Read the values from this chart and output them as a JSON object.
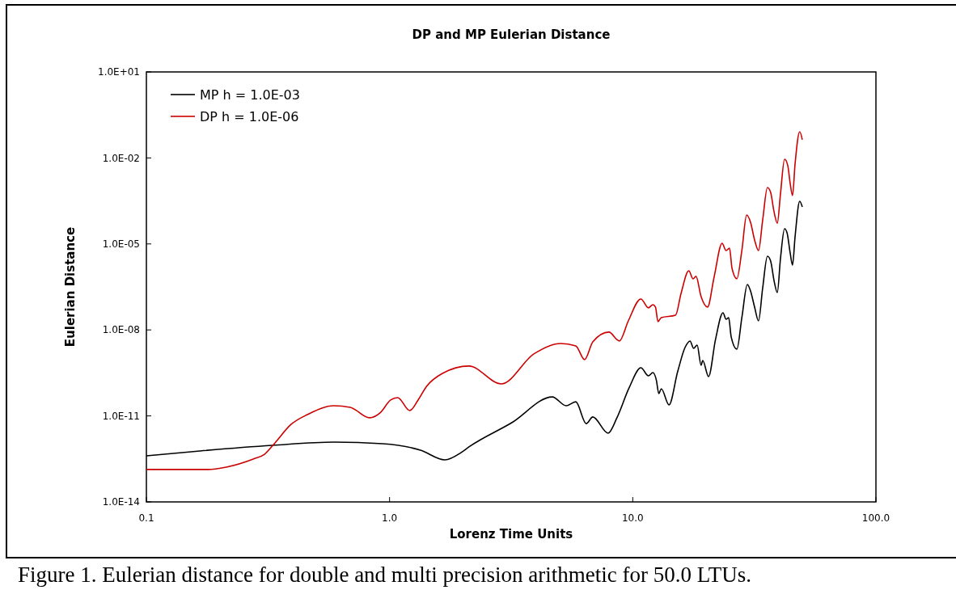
{
  "chart_data": {
    "type": "line",
    "title": "DP and MP Eulerian Distance",
    "xlabel": "Lorenz Time Units",
    "ylabel": "Eulerian Distance",
    "annotations": [
      "Figure 1. Eulerian distance for double and multi precision arithmetic for 50.0 LTUs."
    ],
    "log": "xy",
    "legend": "top left",
    "grid": false,
    "marker": "none",
    "line_style": "solid",
    "xlim": [
      0.1,
      100
    ],
    "ylim": [
      1e-14,
      10
    ],
    "xticks": [
      0.1,
      {
        "value": 1,
        "label": "1.0"
      },
      {
        "value": 10,
        "label": "10.0"
      },
      {
        "value": 100,
        "label": "100.0"
      }
    ],
    "yticks": [
      {
        "value": 1e-14,
        "label": "1.0E-14"
      },
      {
        "value": 1e-11,
        "label": "1.0E-11"
      },
      {
        "value": 1e-08,
        "label": "1.0E-08"
      },
      {
        "value": 1e-05,
        "label": "1.0E-05"
      },
      {
        "value": 0.01,
        "label": "1.0E-02"
      },
      {
        "value": 10,
        "label": "1.0E+01"
      }
    ],
    "series": [
      {
        "name": "MP h = 1.0E-03",
        "color": "#000000",
        "x": [
          0.1,
          0.166,
          0.33,
          0.591,
          0.936,
          1.34,
          1.69,
          1.97,
          2.12,
          3.18,
          4.67,
          5.32,
          5.83,
          6.44,
          6.85,
          7.92,
          8.61,
          9.66,
          10.8,
          11.6,
          12.1,
          12.5,
          12.8,
          13.1,
          14.1,
          15.3,
          16.4,
          17.2,
          17.8,
          18.4,
          19.1,
          19.4,
          20.5,
          21.9,
          23.5,
          24.2,
          24.8,
          25.4,
          26.8,
          28.1,
          29.6,
          30.5,
          31.7,
          32.9,
          34.2,
          35.8,
          36.9,
          38.1,
          39.3,
          40.5,
          42.1,
          43.1,
          44.4,
          45.4,
          46.5,
          48.6,
          49.8
        ],
        "values": [
          4.06e-13,
          6e-13,
          9.4e-13,
          1.22e-12,
          1.07e-12,
          6.4e-13,
          2.93e-13,
          5.3e-13,
          8.3e-13,
          5.8e-12,
          4.6e-11,
          2.27e-11,
          3.1e-11,
          5.4e-12,
          9.2e-12,
          2.5e-12,
          8.6e-12,
          9.5e-11,
          4.8e-10,
          2.5e-10,
          3.25e-10,
          1.8e-10,
          6e-11,
          8.9e-11,
          2.43e-11,
          3.5e-10,
          2.43e-09,
          4.1e-09,
          2.28e-09,
          2.96e-09,
          5.8e-10,
          8.6e-10,
          2.35e-10,
          4.7e-09,
          3.97e-08,
          2.36e-08,
          2.69e-08,
          5.7e-09,
          2.14e-09,
          2.69e-08,
          3.85e-07,
          2.29e-07,
          6.25e-08,
          2.07e-08,
          2.78e-07,
          3.73e-06,
          2.53e-06,
          5.3e-07,
          2.01e-07,
          3.07e-06,
          3.4e-05,
          2.45e-05,
          4.84e-06,
          1.83e-06,
          1.77e-05,
          0.000308,
          0.000196
        ]
      },
      {
        "name": "DP h = 1.0E-06",
        "color": "#cc0000",
        "x": [
          0.1,
          0.179,
          0.213,
          0.275,
          0.306,
          0.338,
          0.394,
          0.459,
          0.591,
          0.689,
          0.828,
          0.914,
          1.01,
          1.08,
          1.21,
          1.31,
          1.42,
          1.65,
          2.12,
          2.88,
          3.92,
          5.05,
          5.83,
          6.34,
          6.85,
          7.98,
          8.81,
          9.59,
          10.8,
          11.6,
          12.1,
          12.4,
          12.7,
          13.1,
          15.0,
          15.8,
          17.0,
          17.7,
          18.2,
          19.1,
          20.3,
          21.6,
          23.3,
          24.2,
          25.0,
          25.6,
          26.8,
          28.1,
          29.4,
          30.5,
          31.7,
          32.9,
          34.2,
          35.8,
          36.9,
          38.1,
          39.3,
          40.5,
          42.1,
          43.4,
          44.4,
          45.4,
          46.5,
          48.6,
          49.8
        ],
        "values": [
          1.35e-13,
          1.35e-13,
          1.64e-13,
          3.13e-13,
          4.6e-13,
          1.15e-12,
          5.1e-12,
          1.11e-11,
          2.27e-11,
          2e-11,
          8.6e-12,
          1.27e-11,
          3.58e-11,
          4.35e-11,
          1.54e-11,
          3.58e-11,
          1.08e-10,
          3.05e-10,
          5.5e-10,
          1.31e-10,
          1.45e-09,
          3.37e-09,
          2.77e-09,
          9.2e-10,
          3.84e-09,
          8.4e-09,
          4.1e-09,
          2.07e-08,
          1.2e-07,
          5.9e-08,
          7.6e-08,
          6.25e-08,
          1.94e-08,
          2.69e-08,
          3.27e-08,
          1.88e-07,
          1.16e-06,
          6.1e-07,
          7.4e-07,
          1.45e-07,
          6.25e-08,
          6.9e-07,
          1.05e-05,
          5.9e-06,
          7.1e-06,
          1.41e-06,
          6.1e-07,
          5.9e-06,
          0.000102,
          5.7e-05,
          1.37e-05,
          5.9e-06,
          6.5e-05,
          0.00093,
          0.00063,
          0.000133,
          5.3e-05,
          0.00055,
          0.009,
          0.0054,
          0.00129,
          0.00049,
          0.0061,
          0.082,
          0.043
        ]
      }
    ]
  }
}
